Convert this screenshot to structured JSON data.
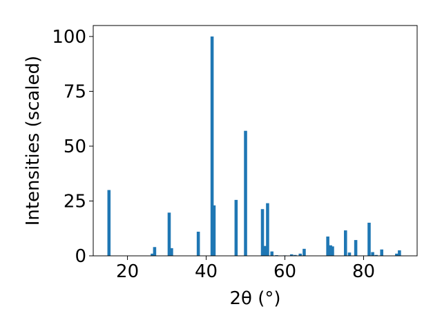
{
  "chart_data": {
    "type": "bar",
    "xlabel": "2θ (°)",
    "ylabel": "Intensities (scaled)",
    "xlim": [
      11.3,
      93.6
    ],
    "ylim": [
      0,
      105
    ],
    "x_ticks": [
      20,
      40,
      60,
      80
    ],
    "y_ticks": [
      0,
      25,
      50,
      75,
      100
    ],
    "bar_width": 0.8,
    "grid": false,
    "colors": {
      "bar": "#1f77b4",
      "axis": "#000000"
    },
    "series": [
      {
        "x": [
          15.3,
          26.3,
          26.9,
          30.6,
          31.2,
          38.0,
          41.5,
          42.0,
          47.6,
          50.0,
          54.3,
          55.0,
          55.6,
          56.7,
          57.9,
          60.0,
          61.7,
          62.6,
          63.9,
          64.9,
          70.9,
          71.6,
          72.1,
          75.4,
          76.4,
          78.0,
          81.4,
          82.3,
          83.2,
          84.6,
          88.4,
          89.1
        ],
        "y": [
          30.0,
          1.0,
          4.0,
          19.7,
          3.5,
          11.0,
          100.0,
          23.0,
          25.5,
          57.0,
          21.3,
          4.5,
          24.0,
          2.0,
          0.3,
          0.2,
          0.7,
          0.4,
          1.0,
          3.2,
          8.8,
          4.8,
          4.3,
          11.6,
          1.5,
          7.2,
          15.1,
          1.7,
          0.4,
          2.9,
          1.0,
          2.5
        ]
      }
    ]
  }
}
